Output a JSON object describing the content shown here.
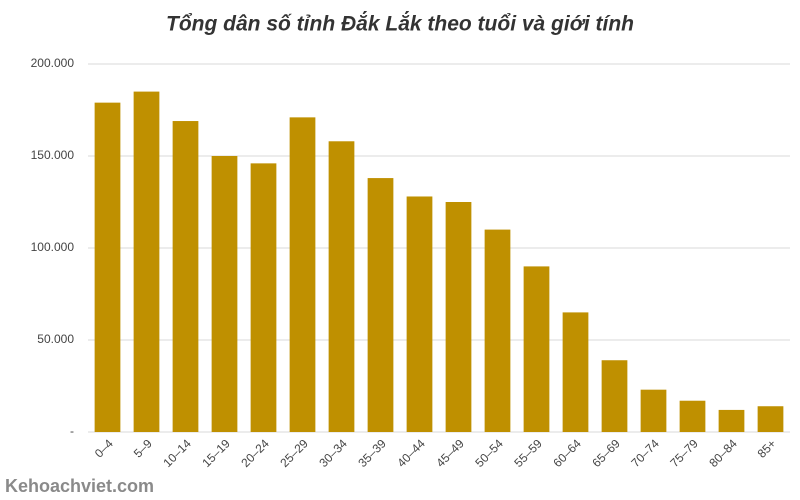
{
  "chart_data": {
    "type": "bar",
    "title": "Tổng dân số tỉnh Đắk Lắk theo tuổi và giới tính",
    "categories": [
      "0–4",
      "5–9",
      "10–14",
      "15–19",
      "20–24",
      "25–29",
      "30–34",
      "35–39",
      "40–44",
      "45–49",
      "50–54",
      "55–59",
      "60–64",
      "65–69",
      "70–74",
      "75–79",
      "80–84",
      "85+"
    ],
    "values": [
      179000,
      185000,
      169000,
      150000,
      146000,
      171000,
      158000,
      138000,
      128000,
      125000,
      110000,
      90000,
      65000,
      39000,
      23000,
      17000,
      12000,
      14000
    ],
    "color": "#bf9000",
    "ylim": [
      0,
      200000
    ],
    "yticks": [
      {
        "value": 0,
        "label": "-"
      },
      {
        "value": 50000,
        "label": "50.000"
      },
      {
        "value": 100000,
        "label": "100.000"
      },
      {
        "value": 150000,
        "label": "150.000"
      },
      {
        "value": 200000,
        "label": "200.000"
      }
    ],
    "grid": true
  },
  "watermark": "Kehoachviet.com"
}
